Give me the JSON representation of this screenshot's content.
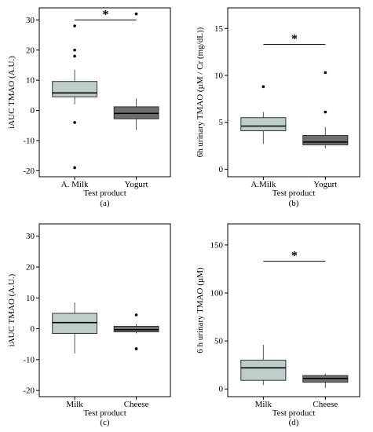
{
  "chart_data": [
    {
      "type": "box",
      "panel_label": "(a)",
      "xlabel": "Test product",
      "ylabel": "iAUC TMAO (A.U.)",
      "ylim": [
        -22,
        34
      ],
      "yticks": [
        -20,
        -10,
        0,
        10,
        20,
        30
      ],
      "categories": [
        "A. Milk",
        "Yogurt"
      ],
      "boxes": [
        {
          "q1": 4.5,
          "median": 5.8,
          "q3": 9.6,
          "whisker_low": 2.0,
          "whisker_high": 13.5,
          "outliers": [
            28,
            20,
            18,
            -4,
            -19
          ],
          "fill": "#bccdcb"
        },
        {
          "q1": -2.8,
          "median": -1.0,
          "q3": 1.2,
          "whisker_low": -6.5,
          "whisker_high": 4.0,
          "outliers": [
            32
          ],
          "fill": "#6e6e6e"
        }
      ],
      "significance": {
        "text": "*",
        "y": 30
      }
    },
    {
      "type": "box",
      "panel_label": "(b)",
      "xlabel": "Test product",
      "ylabel": "6h urinary TMAO (µM / Cr (mg/dL))",
      "ylim": [
        -0.8,
        17.2
      ],
      "yticks": [
        0,
        5,
        10,
        15
      ],
      "categories": [
        "A.Milk",
        "Yogurt"
      ],
      "boxes": [
        {
          "q1": 4.1,
          "median": 4.6,
          "q3": 5.5,
          "whisker_low": 2.7,
          "whisker_high": 6.1,
          "outliers": [
            8.8
          ],
          "fill": "#bccdcb"
        },
        {
          "q1": 2.6,
          "median": 2.9,
          "q3": 3.6,
          "whisker_low": 2.2,
          "whisker_high": 4.5,
          "outliers": [
            10.3,
            6.1
          ],
          "fill": "#6e6e6e"
        }
      ],
      "significance": {
        "text": "*",
        "y": 13.3
      }
    },
    {
      "type": "box",
      "panel_label": "(c)",
      "xlabel": "Test product",
      "ylabel": "iAUC TMAO (A.U.)",
      "ylim": [
        -22,
        34
      ],
      "yticks": [
        -20,
        -10,
        0,
        10,
        20,
        30
      ],
      "categories": [
        "Milk",
        "Cheese"
      ],
      "boxes": [
        {
          "q1": -1.5,
          "median": 2.0,
          "q3": 5.0,
          "whisker_low": -8.0,
          "whisker_high": 8.5,
          "outliers": [],
          "fill": "#bccdcb"
        },
        {
          "q1": -1.0,
          "median": -0.3,
          "q3": 0.8,
          "whisker_low": -1.5,
          "whisker_high": 1.5,
          "outliers": [
            4.5,
            -6.5
          ],
          "fill": "#6e6e6e"
        }
      ],
      "significance": null
    },
    {
      "type": "box",
      "panel_label": "(d)",
      "xlabel": "Test product",
      "ylabel": "6 h urinary TMAO (µM)",
      "ylim": [
        -8,
        172
      ],
      "yticks": [
        0,
        50,
        100,
        150
      ],
      "categories": [
        "Milk",
        "Cheese"
      ],
      "boxes": [
        {
          "q1": 9,
          "median": 22,
          "q3": 30,
          "whisker_low": 4,
          "whisker_high": 46,
          "outliers": [],
          "fill": "#bccdcb"
        },
        {
          "q1": 7,
          "median": 11,
          "q3": 14,
          "whisker_low": 1,
          "whisker_high": 16,
          "outliers": [],
          "fill": "#6e6e6e"
        }
      ],
      "significance": {
        "text": "*",
        "y": 133
      }
    }
  ]
}
